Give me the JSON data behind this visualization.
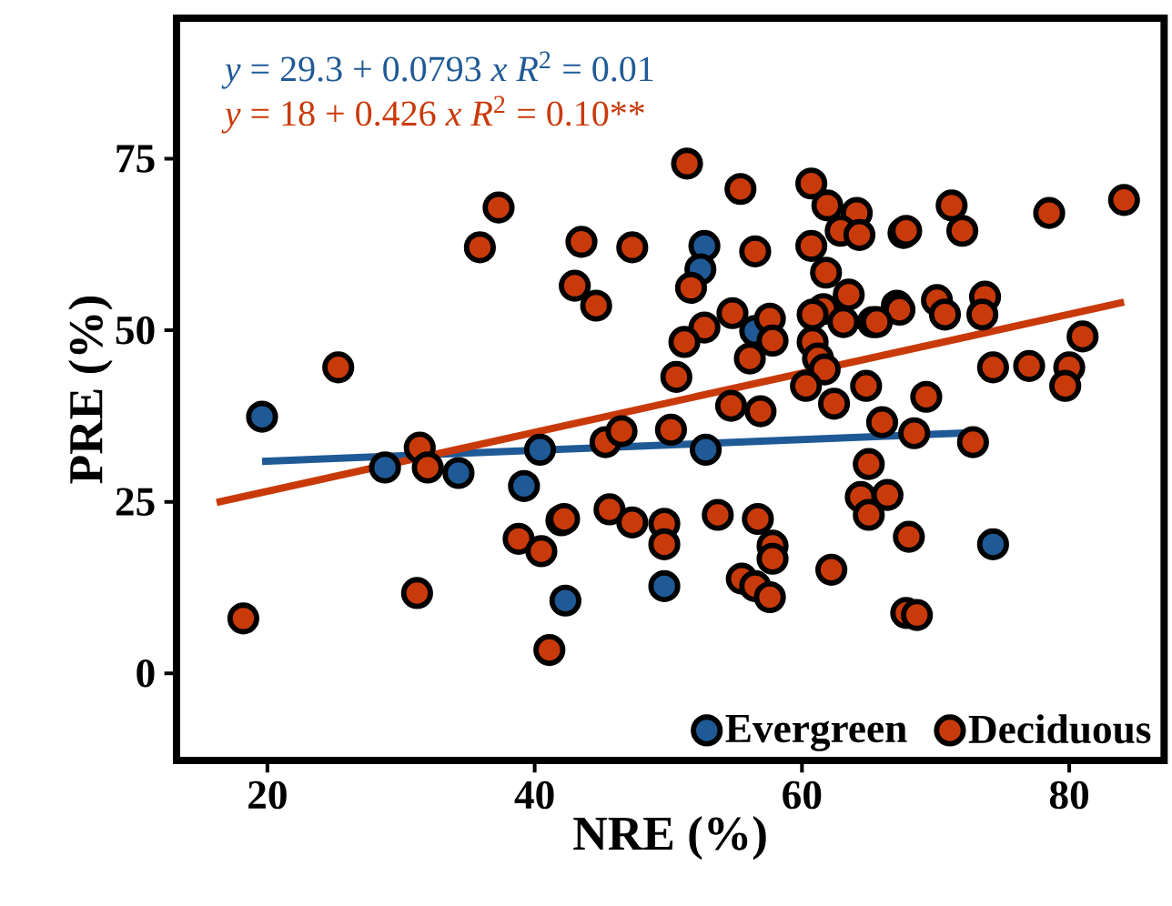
{
  "chart_data": {
    "type": "scatter",
    "xlabel": "NRE (%)",
    "ylabel": "PRE (%)",
    "annotations": [
      "*y* = 29.3 + 0.0793 *x*   *R*$^{2}$ = 0.01",
      "*y* = 18 + 0.426 *x*    *R*$^{2}$ = 0.10**"
    ],
    "xlim": [
      13.2,
      87.1
    ],
    "ylim": [
      -12.7,
      95.5
    ],
    "xticks": [
      20,
      40,
      60,
      80
    ],
    "yticks": [
      0,
      25,
      50,
      75
    ],
    "grid": false,
    "legend": "bottom right",
    "series": [
      {
        "name": "Evergreen",
        "color": "#1f5a96",
        "marker": "circle",
        "x": [
          19.6,
          28.8,
          34.3,
          40.4,
          39.2,
          42.3,
          52.7,
          52.4,
          56.5,
          52.8,
          49.7,
          74.3
        ],
        "values": [
          37.4,
          30.0,
          29.2,
          32.6,
          27.3,
          10.6,
          62.3,
          58.9,
          49.9,
          32.6,
          12.7,
          18.8
        ]
      },
      {
        "name": "Deciduous",
        "color": "#c93a0a",
        "marker": "circle",
        "x": [
          37.3,
          35.9,
          25.3,
          31.4,
          32.0,
          42.0,
          38.8,
          40.5,
          31.2,
          18.2,
          41.1,
          43.5,
          51.4,
          55.4,
          60.7,
          61.9,
          64.1,
          62.9,
          64.3,
          47.3,
          56.5,
          60.7,
          67.6,
          43.0,
          44.6,
          51.7,
          61.8,
          63.5,
          67.1,
          61.6,
          54.8,
          57.6,
          60.8,
          63.1,
          65.3,
          52.7,
          51.2,
          57.8,
          56.1,
          60.8,
          61.2,
          61.7,
          50.6,
          60.3,
          64.8,
          54.7,
          56.9,
          62.4,
          66.0,
          45.3,
          46.5,
          50.2,
          65.0,
          64.4,
          66.4,
          65.0,
          42.2,
          45.6,
          47.3,
          49.7,
          49.7,
          53.7,
          56.7,
          57.8,
          57.8,
          62.2,
          55.5,
          56.5,
          57.6,
          67.8,
          71.2,
          72.0,
          67.8,
          78.5,
          84.1,
          67.3,
          70.1,
          70.7,
          73.7,
          73.5,
          65.6,
          81.0,
          74.3,
          77.0,
          80.0,
          79.7,
          69.3,
          68.4,
          72.8,
          68.0,
          68.6
        ],
        "values": [
          67.9,
          62.1,
          44.6,
          32.9,
          30.0,
          22.3,
          19.6,
          17.8,
          11.7,
          8.0,
          3.4,
          62.9,
          74.3,
          70.6,
          71.4,
          68.2,
          67.1,
          64.5,
          63.9,
          62.1,
          61.5,
          62.3,
          64.2,
          56.5,
          53.6,
          56.2,
          58.4,
          55.2,
          53.6,
          53.1,
          52.5,
          51.7,
          52.3,
          51.2,
          51.2,
          50.4,
          48.3,
          48.5,
          45.9,
          48.3,
          45.9,
          44.3,
          43.2,
          41.9,
          41.9,
          39.0,
          38.2,
          39.3,
          36.6,
          33.7,
          35.3,
          35.5,
          30.5,
          25.7,
          26.0,
          23.1,
          22.5,
          23.9,
          22.0,
          21.8,
          18.8,
          23.1,
          22.5,
          18.6,
          16.7,
          15.1,
          13.8,
          12.7,
          11.1,
          8.8,
          68.2,
          64.5,
          64.5,
          67.1,
          69.0,
          53.0,
          54.4,
          52.3,
          54.9,
          52.3,
          51.2,
          49.1,
          44.6,
          44.8,
          44.6,
          41.9,
          40.3,
          35.0,
          33.7,
          19.9,
          8.5
        ]
      },
      {
        "type": "line",
        "color": "#1f5a96",
        "marker": "none",
        "x": [
          19.6,
          73.0
        ],
        "values": [
          30.9,
          35.1
        ]
      },
      {
        "type": "line",
        "color": "#c93a0a",
        "marker": "none",
        "x": [
          16.2,
          84.1
        ],
        "values": [
          24.9,
          54.1
        ]
      }
    ]
  }
}
